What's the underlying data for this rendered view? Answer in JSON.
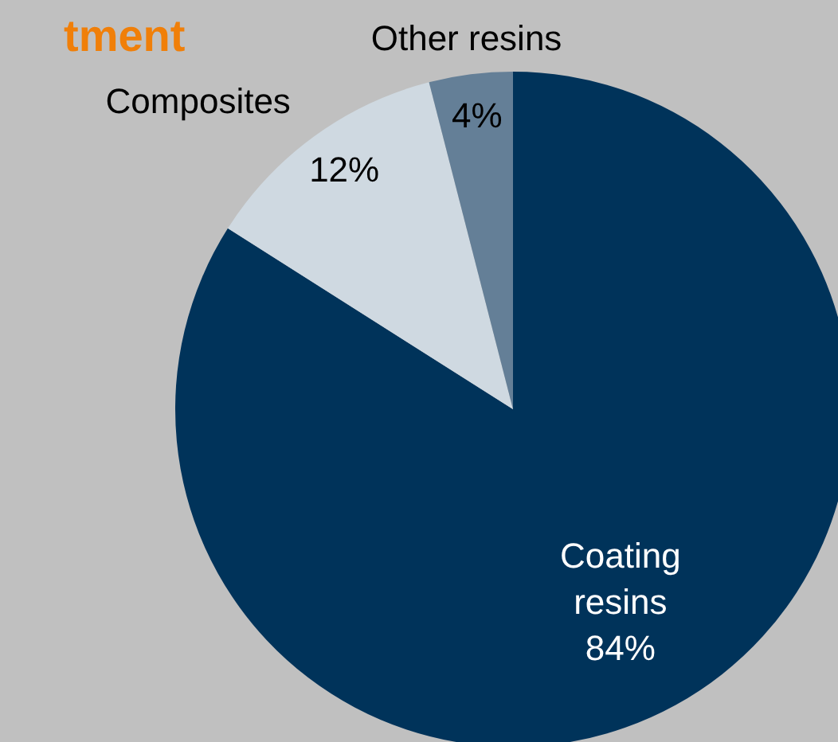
{
  "chart_data": {
    "type": "pie",
    "title": "tment",
    "categories": [
      "Coating resins",
      "Composites",
      "Other resins"
    ],
    "values": [
      84,
      12,
      4
    ],
    "colors": [
      "#00335a",
      "#cfd9e1",
      "#647f97"
    ],
    "value_labels": [
      "84%",
      "12%",
      "4%"
    ],
    "legend": false
  }
}
